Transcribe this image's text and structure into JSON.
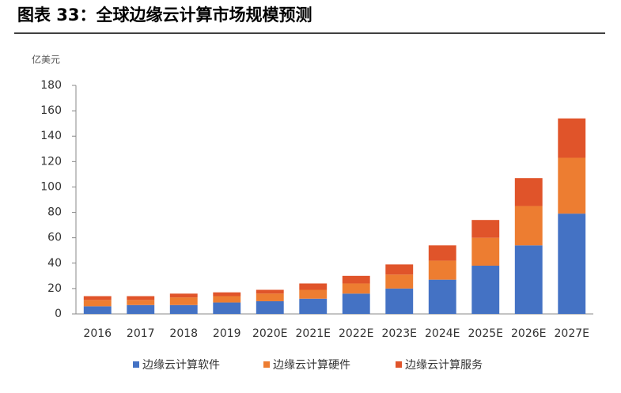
{
  "chart_data": {
    "type": "bar",
    "stacked": true,
    "title": "图表 33：全球边缘云计算市场规模预测",
    "y_label": "亿美元",
    "categories": [
      "2016",
      "2017",
      "2018",
      "2019",
      "2020E",
      "2021E",
      "2022E",
      "2023E",
      "2024E",
      "2025E",
      "2026E",
      "2027E"
    ],
    "series": [
      {
        "name": "边缘云计算软件",
        "color": "#4472c4",
        "values": [
          6,
          7,
          7,
          9,
          10,
          12,
          16,
          20,
          27,
          38,
          54,
          79
        ]
      },
      {
        "name": "边缘云计算硬件",
        "color": "#ed7d31",
        "values": [
          5,
          4,
          6,
          5,
          6,
          7,
          8,
          11,
          15,
          22,
          31,
          44
        ]
      },
      {
        "name": "边缘云计算服务",
        "color": "#e0542a",
        "values": [
          3,
          3,
          3,
          3,
          3,
          5,
          6,
          8,
          12,
          14,
          22,
          31
        ]
      }
    ],
    "ylim": [
      0,
      180
    ],
    "yticks": [
      0,
      20,
      40,
      60,
      80,
      100,
      120,
      140,
      160,
      180
    ],
    "grid": false,
    "legend": "bottom"
  }
}
